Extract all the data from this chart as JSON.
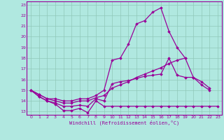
{
  "xlabel": "Windchill (Refroidissement éolien,°C)",
  "background_color": "#b0e8e0",
  "grid_color": "#90c8b8",
  "line_color": "#990099",
  "xlim": [
    -0.5,
    23.5
  ],
  "ylim": [
    12.7,
    23.3
  ],
  "yticks": [
    13,
    14,
    15,
    16,
    17,
    18,
    19,
    20,
    21,
    22,
    23
  ],
  "xticks": [
    0,
    1,
    2,
    3,
    4,
    5,
    6,
    7,
    8,
    9,
    10,
    11,
    12,
    13,
    14,
    15,
    16,
    17,
    18,
    19,
    20,
    21,
    22,
    23
  ],
  "series": [
    [
      15.0,
      14.4,
      14.0,
      13.7,
      13.1,
      13.1,
      13.3,
      12.9,
      14.0,
      13.5,
      13.5,
      13.5,
      13.5,
      13.5,
      13.5,
      13.5,
      13.5,
      13.5,
      13.5,
      13.5,
      13.5,
      13.5,
      13.5,
      13.5
    ],
    [
      15.0,
      14.4,
      14.0,
      13.8,
      13.5,
      13.5,
      13.6,
      13.5,
      14.2,
      14.0,
      15.6,
      15.8,
      15.9,
      16.1,
      16.3,
      16.4,
      16.5,
      18.0,
      16.4,
      16.2,
      16.2,
      15.8,
      15.2,
      null
    ],
    [
      15.0,
      14.6,
      14.2,
      14.0,
      13.8,
      13.8,
      14.0,
      14.0,
      14.3,
      14.5,
      15.2,
      15.5,
      15.8,
      16.2,
      16.5,
      16.8,
      17.1,
      17.5,
      17.8,
      18.0,
      null,
      null,
      null,
      null
    ],
    [
      15.0,
      14.6,
      14.2,
      14.2,
      14.0,
      14.0,
      14.2,
      14.2,
      14.5,
      15.0,
      17.8,
      18.0,
      19.3,
      21.2,
      21.5,
      22.3,
      22.7,
      20.5,
      19.0,
      18.0,
      16.2,
      15.5,
      15.0,
      null
    ]
  ]
}
